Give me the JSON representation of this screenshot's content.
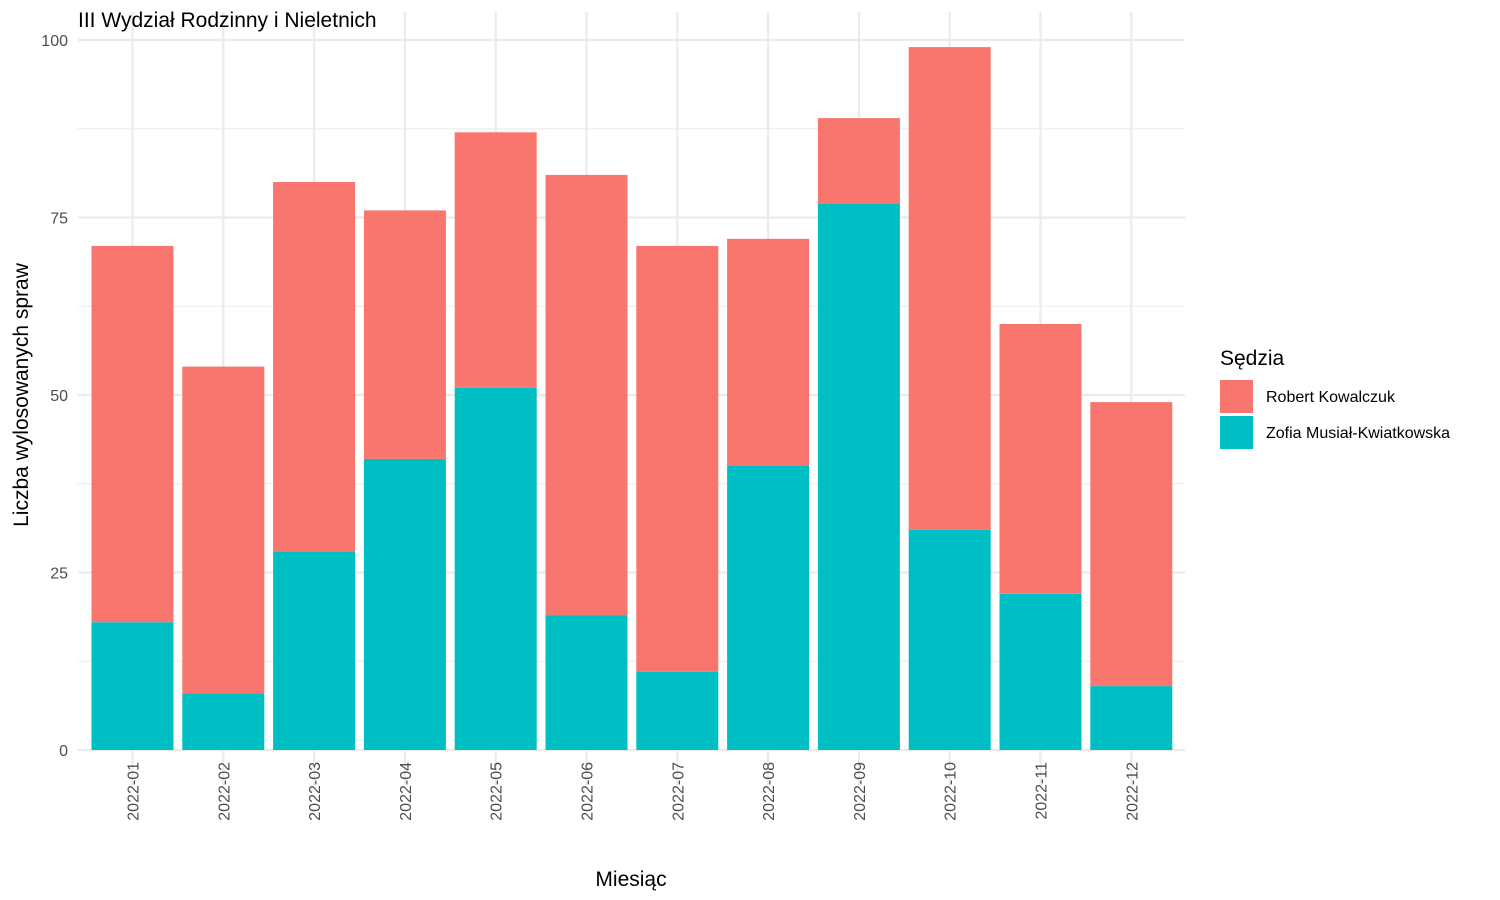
{
  "chart_data": {
    "type": "bar",
    "stacked": true,
    "title": "III Wydział Rodzinny i Nieletnich",
    "xlabel": "Miesiąc",
    "ylabel": "Liczba wylosowanych spraw",
    "ylim": [
      0,
      100
    ],
    "yticks": [
      0,
      25,
      50,
      75,
      100
    ],
    "grid": true,
    "legend": {
      "title": "Sędzia",
      "position": "right"
    },
    "categories": [
      "2022-01",
      "2022-02",
      "2022-03",
      "2022-04",
      "2022-05",
      "2022-06",
      "2022-07",
      "2022-08",
      "2022-09",
      "2022-10",
      "2022-11",
      "2022-12"
    ],
    "series": [
      {
        "name": "Robert Kowalczuk",
        "color": "#F8766D",
        "values": [
          53,
          46,
          52,
          35,
          36,
          62,
          60,
          32,
          12,
          68,
          38,
          40
        ]
      },
      {
        "name": "Zofia Musiał-Kwiatkowska",
        "color": "#00BFC4",
        "values": [
          18,
          8,
          28,
          41,
          51,
          19,
          11,
          40,
          77,
          31,
          22,
          9
        ]
      }
    ]
  }
}
